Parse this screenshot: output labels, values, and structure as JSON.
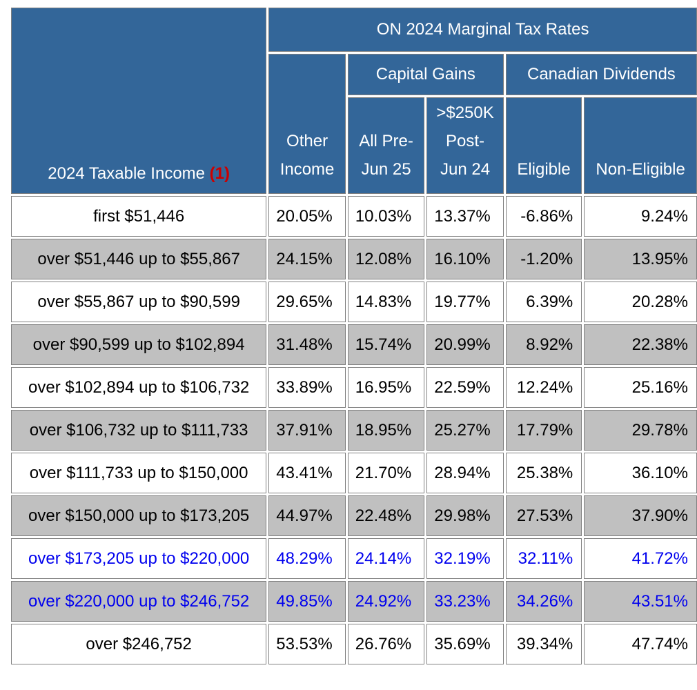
{
  "table": {
    "title": "ON 2024 Marginal Tax Rates",
    "income_header": "2024 Taxable Income",
    "income_note": "(1)",
    "group_capital_gains": "Capital Gains",
    "group_canadian_dividends": "Canadian Dividends",
    "col_other_income": [
      "Other",
      "Income"
    ],
    "col_all_pre": [
      "All Pre-",
      "Jun 25"
    ],
    "col_250k_post": [
      ">$250K",
      "Post-",
      "Jun 24"
    ],
    "col_eligible": "Eligible",
    "col_non_eligible": "Non-Eligible",
    "rows": [
      {
        "income": "first $51,446",
        "other": "20.05%",
        "cg_pre": "10.03%",
        "cg_post": "13.37%",
        "eligible": "-6.86%",
        "non_eligible": "9.24%",
        "highlight": false
      },
      {
        "income": "over $51,446 up to $55,867",
        "other": "24.15%",
        "cg_pre": "12.08%",
        "cg_post": "16.10%",
        "eligible": "-1.20%",
        "non_eligible": "13.95%",
        "highlight": false
      },
      {
        "income": "over $55,867 up to $90,599",
        "other": "29.65%",
        "cg_pre": "14.83%",
        "cg_post": "19.77%",
        "eligible": "6.39%",
        "non_eligible": "20.28%",
        "highlight": false
      },
      {
        "income": "over $90,599 up to $102,894",
        "other": "31.48%",
        "cg_pre": "15.74%",
        "cg_post": "20.99%",
        "eligible": "8.92%",
        "non_eligible": "22.38%",
        "highlight": false
      },
      {
        "income": "over $102,894 up to $106,732",
        "other": "33.89%",
        "cg_pre": "16.95%",
        "cg_post": "22.59%",
        "eligible": "12.24%",
        "non_eligible": "25.16%",
        "highlight": false
      },
      {
        "income": "over $106,732 up to $111,733",
        "other": "37.91%",
        "cg_pre": "18.95%",
        "cg_post": "25.27%",
        "eligible": "17.79%",
        "non_eligible": "29.78%",
        "highlight": false
      },
      {
        "income": "over $111,733 up to $150,000",
        "other": "43.41%",
        "cg_pre": "21.70%",
        "cg_post": "28.94%",
        "eligible": "25.38%",
        "non_eligible": "36.10%",
        "highlight": false
      },
      {
        "income": "over $150,000 up to $173,205",
        "other": "44.97%",
        "cg_pre": "22.48%",
        "cg_post": "29.98%",
        "eligible": "27.53%",
        "non_eligible": "37.90%",
        "highlight": false
      },
      {
        "income": "over $173,205 up to $220,000",
        "other": "48.29%",
        "cg_pre": "24.14%",
        "cg_post": "32.19%",
        "eligible": "32.11%",
        "non_eligible": "41.72%",
        "highlight": true
      },
      {
        "income": "over $220,000 up to $246,752",
        "other": "49.85%",
        "cg_pre": "24.92%",
        "cg_post": "33.23%",
        "eligible": "34.26%",
        "non_eligible": "43.51%",
        "highlight": true
      },
      {
        "income": "over $246,752",
        "other": "53.53%",
        "cg_pre": "26.76%",
        "cg_post": "35.69%",
        "eligible": "39.34%",
        "non_eligible": "47.74%",
        "highlight": false
      }
    ]
  },
  "colors": {
    "header_bg": "#336699",
    "header_text": "#ffffff",
    "shaded_row": "#c0c0c0",
    "highlight_text": "#0000ee",
    "note_red": "#cc0000"
  }
}
